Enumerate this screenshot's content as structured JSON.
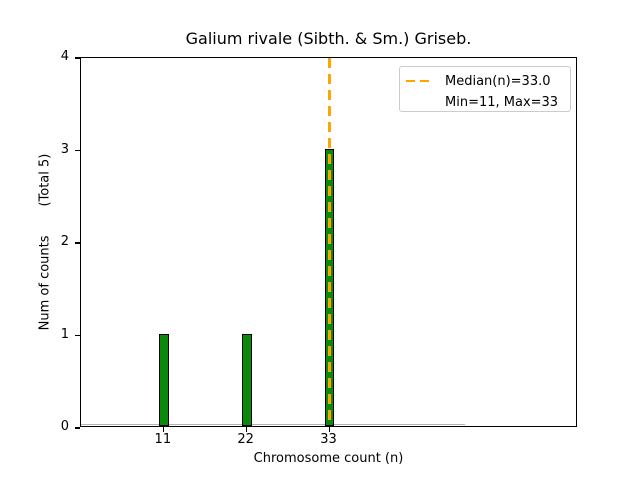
{
  "chart_data": {
    "type": "bar",
    "title": "Galium rivale (Sibth. & Sm.) Griseb.",
    "xlabel": "Chromosome count (n)",
    "ylabel": "Num of counts       (Total 5)",
    "categories": [
      11,
      22,
      33
    ],
    "values": [
      1,
      1,
      3
    ],
    "total_counts": 5,
    "median": 33.0,
    "min": 11,
    "max": 33,
    "xlim": [
      0,
      66
    ],
    "ylim": [
      0,
      4
    ],
    "xticks": [
      11,
      22,
      33
    ],
    "yticks": [
      0,
      1,
      2,
      3,
      4
    ],
    "bar_width_units": 1.3,
    "grid": false,
    "legend": {
      "position": "upper-right",
      "entries": [
        "Median(n)=33.0",
        "Min=11, Max=33"
      ]
    },
    "baseline_segment": {
      "x_from": 0,
      "x_to": 51
    },
    "colors": {
      "bar_fill": "#0a8a0a",
      "bar_edge": "#000000",
      "median_line": "#ffa500",
      "baseline": "#b3b3b3",
      "legend_border": "#cccccc",
      "spine": "#000000",
      "text": "#000000"
    }
  }
}
